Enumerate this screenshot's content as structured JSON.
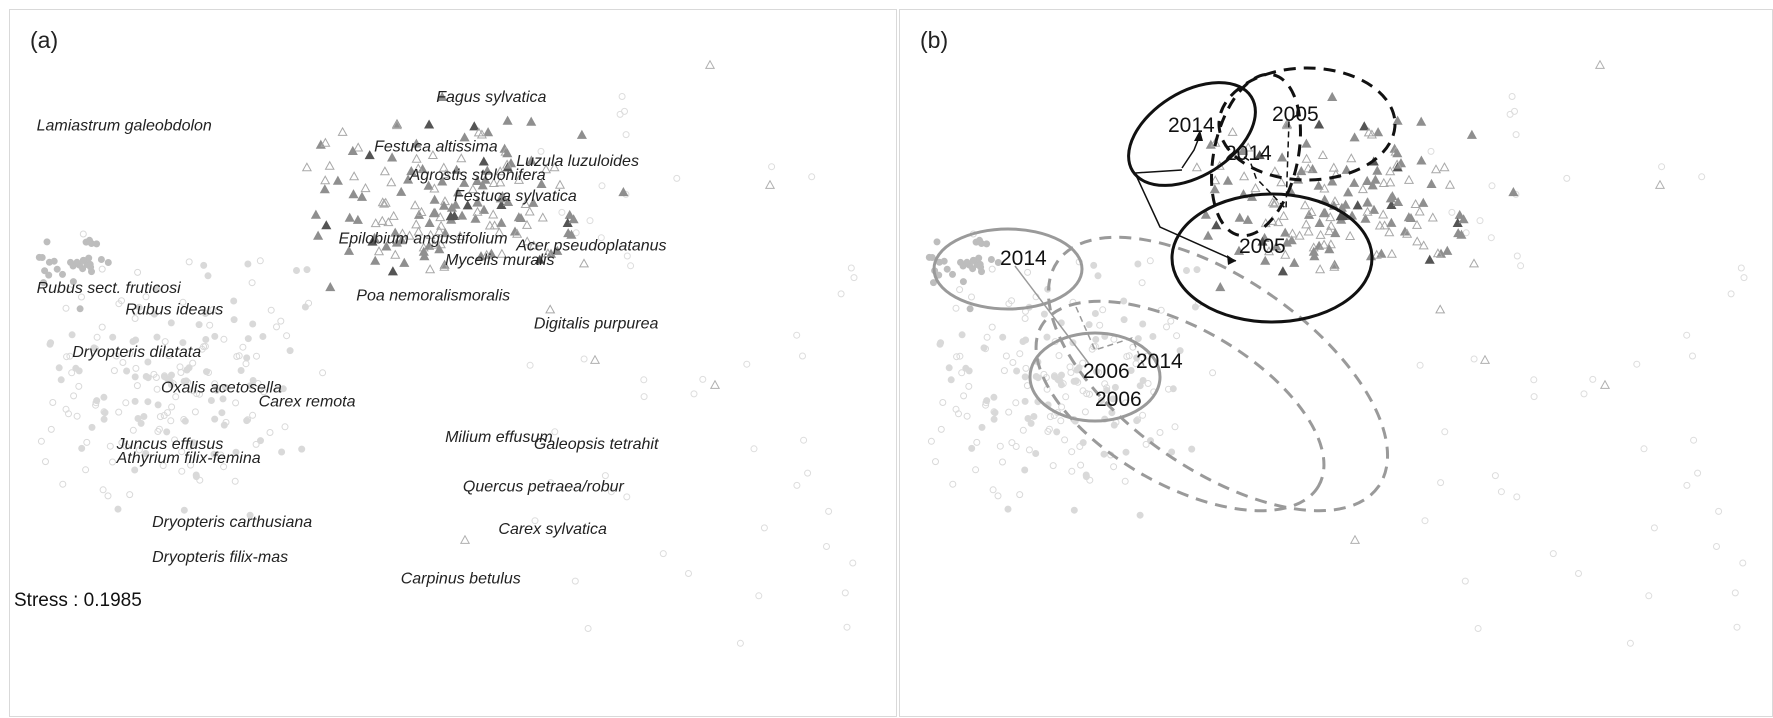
{
  "panels": [
    {
      "label": "(a)"
    },
    {
      "label": "(b)"
    }
  ],
  "stress": "Stress : 0.1985",
  "colors": {
    "light_point": "#d9d9d9",
    "mid_point": "#8f8f8f",
    "dark_point": "#555555",
    "grey_group": "#9a9a9a",
    "black_group": "#111111"
  },
  "chart_data": [
    {
      "type": "scatter",
      "title": "(a)",
      "axes_visible": false,
      "annotation": "Stress : 0.1985",
      "species": [
        {
          "name": "Lamiastrum galeobdolon",
          "x": 0.03,
          "y": 0.83
        },
        {
          "name": "Fagus sylvatica",
          "x": 0.48,
          "y": 0.87
        },
        {
          "name": "Festuca altissima",
          "x": 0.41,
          "y": 0.8
        },
        {
          "name": "Luzula luzuloides",
          "x": 0.57,
          "y": 0.78
        },
        {
          "name": "Agrostis stolonifera",
          "x": 0.45,
          "y": 0.76
        },
        {
          "name": "Festuca sylvatica",
          "x": 0.5,
          "y": 0.73
        },
        {
          "name": "Epilobium angustifolium",
          "x": 0.37,
          "y": 0.67
        },
        {
          "name": "Acer pseudoplatanus",
          "x": 0.57,
          "y": 0.66
        },
        {
          "name": "Mycelis muralis",
          "x": 0.49,
          "y": 0.64
        },
        {
          "name": "Rubus sect. fruticosi",
          "x": 0.03,
          "y": 0.6
        },
        {
          "name": "Rubus ideaus",
          "x": 0.13,
          "y": 0.57
        },
        {
          "name": "Poa nemoralismoralis",
          "x": 0.39,
          "y": 0.59
        },
        {
          "name": "Digitalis purpurea",
          "x": 0.59,
          "y": 0.55
        },
        {
          "name": "Dryopteris dilatata",
          "x": 0.07,
          "y": 0.51
        },
        {
          "name": "Oxalis acetosella",
          "x": 0.17,
          "y": 0.46
        },
        {
          "name": "Carex remota",
          "x": 0.28,
          "y": 0.44
        },
        {
          "name": "Milium effusum",
          "x": 0.49,
          "y": 0.39
        },
        {
          "name": "Galeopsis tetrahit",
          "x": 0.59,
          "y": 0.38
        },
        {
          "name": "Juncus effusus",
          "x": 0.12,
          "y": 0.38
        },
        {
          "name": "Athyrium filix-femina",
          "x": 0.12,
          "y": 0.36
        },
        {
          "name": "Quercus petraea/robur",
          "x": 0.51,
          "y": 0.32
        },
        {
          "name": "Dryopteris carthusiana",
          "x": 0.16,
          "y": 0.27
        },
        {
          "name": "Carex sylvatica",
          "x": 0.55,
          "y": 0.26
        },
        {
          "name": "Dryopteris filix-mas",
          "x": 0.16,
          "y": 0.22
        },
        {
          "name": "Carpinus betulus",
          "x": 0.44,
          "y": 0.19
        }
      ]
    },
    {
      "type": "scatter",
      "title": "(b)",
      "axes_visible": false,
      "ellipses": [
        {
          "label": "2014",
          "group": "grey",
          "style": "solid",
          "cx": 0.15,
          "cy": 0.58,
          "rx": 0.09,
          "ry": 0.06
        },
        {
          "label": "2006",
          "group": "grey",
          "style": "solid",
          "cx": 0.24,
          "cy": 0.41,
          "rx": 0.08,
          "ry": 0.07
        },
        {
          "label": "2014",
          "group": "grey",
          "style": "dashed",
          "cx": 0.43,
          "cy": 0.4,
          "rx": 0.2,
          "ry": 0.1,
          "rotation": 35
        },
        {
          "label": "2006",
          "group": "grey",
          "style": "dashed",
          "cx": 0.38,
          "cy": 0.33,
          "rx": 0.15,
          "ry": 0.09,
          "rotation": 30
        },
        {
          "label": "2014",
          "group": "black",
          "style": "solid",
          "cx": 0.46,
          "cy": 0.83,
          "rx": 0.08,
          "ry": 0.05,
          "rotation": -30
        },
        {
          "label": "2005",
          "group": "black",
          "style": "solid",
          "cx": 0.56,
          "cy": 0.6,
          "rx": 0.11,
          "ry": 0.1
        },
        {
          "label": "2014",
          "group": "black",
          "style": "dashed",
          "cx": 0.52,
          "cy": 0.78,
          "rx": 0.04,
          "ry": 0.1
        },
        {
          "label": "2005",
          "group": "black",
          "style": "dashed",
          "cx": 0.62,
          "cy": 0.85,
          "rx": 0.09,
          "ry": 0.08
        }
      ]
    }
  ]
}
